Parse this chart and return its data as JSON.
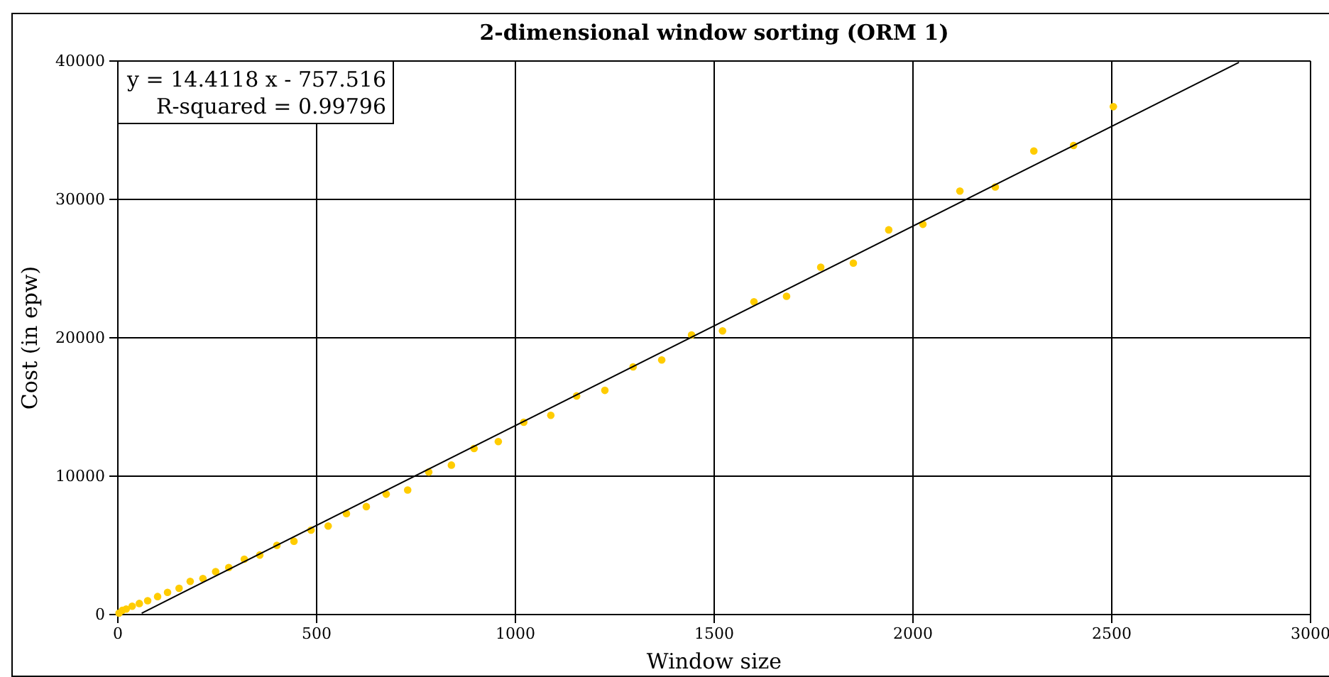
{
  "chart_data": {
    "type": "scatter",
    "title": "2-dimensional window sorting (ORM 1)",
    "xlabel": "Window size",
    "ylabel": "Cost (in epw)",
    "annotations": [
      "y = 14.4118 x - 757.516",
      "R-squared = 0.99796"
    ],
    "xlim": [
      0,
      3000
    ],
    "xticks": [
      0,
      500,
      1000,
      1500,
      2000,
      2500,
      3000
    ],
    "ylim": [
      0,
      40000
    ],
    "yticks": [
      0,
      10000,
      20000,
      30000,
      40000
    ],
    "grid": true,
    "marker": "circle",
    "series": [
      {
        "color": "#ffcc00",
        "x": [
          3,
          11,
          21,
          36,
          54,
          75,
          100,
          125,
          154,
          182,
          214,
          246,
          279,
          318,
          357,
          400,
          443,
          486,
          529,
          575,
          625,
          675,
          729,
          782,
          839,
          896,
          957,
          1021,
          1089,
          1154,
          1225,
          1296,
          1368,
          1443,
          1521,
          1600,
          1682,
          1768,
          1850,
          1939,
          2025,
          2118,
          2207,
          2304,
          2404,
          2504
        ],
        "values": [
          100,
          300,
          400,
          600,
          800,
          1000,
          1300,
          1600,
          1900,
          2400,
          2600,
          3100,
          3400,
          4000,
          4300,
          5000,
          5300,
          6100,
          6400,
          7300,
          7800,
          8700,
          9000,
          10300,
          10800,
          12000,
          12500,
          13900,
          14400,
          15800,
          16200,
          17900,
          18400,
          20200,
          20500,
          22600,
          23000,
          25100,
          25400,
          27800,
          28200,
          30600,
          30900,
          33500,
          33900,
          36700
        ]
      },
      {
        "type": "line",
        "color": "#000000",
        "marker": "none",
        "x": [
          60,
          2820
        ],
        "values": [
          100,
          39900
        ]
      }
    ]
  }
}
